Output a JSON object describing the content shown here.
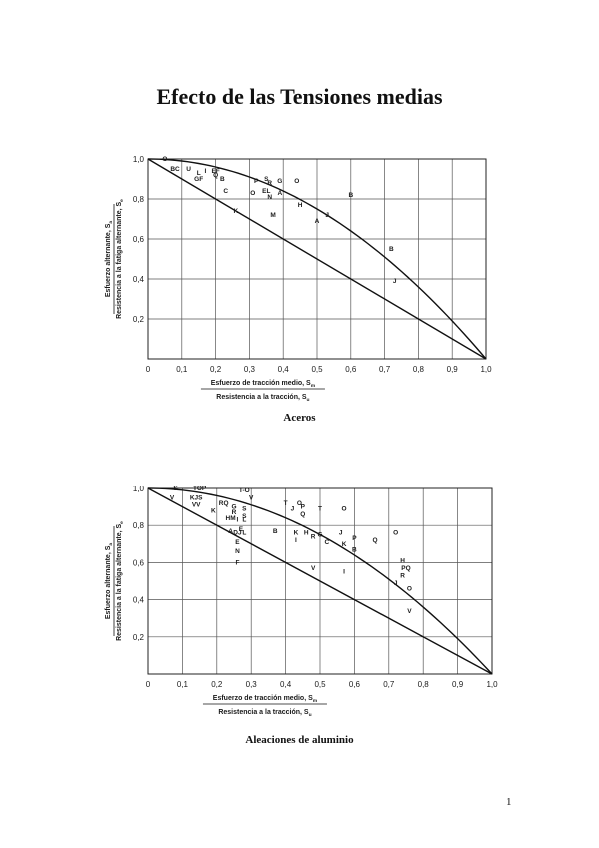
{
  "page": {
    "title": "Efecto de las Tensiones medias",
    "page_number": "1"
  },
  "chart_data": [
    {
      "type": "scatter",
      "title": "Aceros",
      "xlabel_num": "Esfuerzo de tracción medio, S",
      "xlabel_num_sub": "m",
      "xlabel_den": "Resistencia a la tracción, S",
      "xlabel_den_sub": "u",
      "ylabel_num": "Esfuerzo alternante, S",
      "ylabel_num_sub": "a",
      "ylabel_den": "Resistencia a la fatiga alternante, S",
      "ylabel_den_sub": "e",
      "xlim": [
        0,
        1.0
      ],
      "ylim": [
        0,
        1.0
      ],
      "grid": true,
      "x_ticks": [
        "0",
        "0,1",
        "0,2",
        "0,3",
        "0,4",
        "0,5",
        "0,6",
        "0,7",
        "0,8",
        "0,9",
        "1,0"
      ],
      "y_ticks": [
        "0,2",
        "0,4",
        "0,6",
        "0,8",
        "1,0"
      ],
      "curves": [
        {
          "name": "Goodman",
          "kind": "line",
          "points": [
            [
              0,
              1.0
            ],
            [
              1.0,
              0
            ]
          ]
        },
        {
          "name": "Gerber",
          "kind": "parabola",
          "points": [
            [
              0,
              1.0
            ],
            [
              1.0,
              0
            ]
          ]
        }
      ],
      "points": [
        {
          "label": "O",
          "x": 0.05,
          "y": 1.0
        },
        {
          "label": "BC",
          "x": 0.08,
          "y": 0.95
        },
        {
          "label": "U",
          "x": 0.12,
          "y": 0.95
        },
        {
          "label": "I",
          "x": 0.17,
          "y": 0.94
        },
        {
          "label": "EF",
          "x": 0.2,
          "y": 0.94
        },
        {
          "label": "L",
          "x": 0.15,
          "y": 0.93
        },
        {
          "label": "Q",
          "x": 0.2,
          "y": 0.92
        },
        {
          "label": "GF",
          "x": 0.15,
          "y": 0.9
        },
        {
          "label": "B",
          "x": 0.22,
          "y": 0.9
        },
        {
          "label": "C",
          "x": 0.23,
          "y": 0.84
        },
        {
          "label": "P",
          "x": 0.32,
          "y": 0.89
        },
        {
          "label": "S",
          "x": 0.35,
          "y": 0.9
        },
        {
          "label": "R",
          "x": 0.36,
          "y": 0.88
        },
        {
          "label": "G",
          "x": 0.39,
          "y": 0.89
        },
        {
          "label": "O",
          "x": 0.44,
          "y": 0.89
        },
        {
          "label": "O",
          "x": 0.31,
          "y": 0.83
        },
        {
          "label": "EL",
          "x": 0.35,
          "y": 0.84
        },
        {
          "label": "A",
          "x": 0.39,
          "y": 0.83
        },
        {
          "label": "N",
          "x": 0.36,
          "y": 0.81
        },
        {
          "label": "H",
          "x": 0.45,
          "y": 0.77
        },
        {
          "label": "K",
          "x": 0.26,
          "y": 0.74
        },
        {
          "label": "M",
          "x": 0.37,
          "y": 0.72
        },
        {
          "label": "A",
          "x": 0.5,
          "y": 0.69
        },
        {
          "label": "J",
          "x": 0.53,
          "y": 0.72
        },
        {
          "label": "B",
          "x": 0.6,
          "y": 0.82
        },
        {
          "label": "B",
          "x": 0.72,
          "y": 0.55
        },
        {
          "label": "J",
          "x": 0.73,
          "y": 0.39
        }
      ]
    },
    {
      "type": "scatter",
      "title": "Aleaciones de aluminio",
      "xlabel_num": "Esfuerzo de tracción medio, S",
      "xlabel_num_sub": "m",
      "xlabel_den": "Resistencia a la tracción, S",
      "xlabel_den_sub": "u",
      "ylabel_num": "Esfuerzo alternante, S",
      "ylabel_num_sub": "a",
      "ylabel_den": "Resistencia a la fatiga alternante, S",
      "ylabel_den_sub": "e",
      "xlim": [
        0,
        1.0
      ],
      "ylim": [
        0,
        1.0
      ],
      "grid": true,
      "x_ticks": [
        "0",
        "0,1",
        "0,2",
        "0,3",
        "0,4",
        "0,5",
        "0,6",
        "0,7",
        "0,8",
        "0,9",
        "1,0"
      ],
      "y_ticks": [
        "0,2",
        "0,4",
        "0,6",
        "0,8",
        "1,0"
      ],
      "curves": [
        {
          "name": "Goodman",
          "kind": "line",
          "points": [
            [
              0,
              1.0
            ],
            [
              1.0,
              0
            ]
          ]
        },
        {
          "name": "Gerber",
          "kind": "parabola",
          "points": [
            [
              0,
              1.0
            ],
            [
              1.0,
              0
            ]
          ]
        }
      ],
      "points": [
        {
          "label": "S",
          "x": 0.08,
          "y": 1.0
        },
        {
          "label": "TOP",
          "x": 0.15,
          "y": 1.0
        },
        {
          "label": "T-O",
          "x": 0.28,
          "y": 0.99
        },
        {
          "label": "V",
          "x": 0.07,
          "y": 0.95
        },
        {
          "label": "KJS",
          "x": 0.14,
          "y": 0.95
        },
        {
          "label": "V",
          "x": 0.3,
          "y": 0.95
        },
        {
          "label": "VV",
          "x": 0.14,
          "y": 0.91
        },
        {
          "label": "RQ",
          "x": 0.22,
          "y": 0.92
        },
        {
          "label": "G",
          "x": 0.25,
          "y": 0.9
        },
        {
          "label": "S",
          "x": 0.28,
          "y": 0.89
        },
        {
          "label": "T",
          "x": 0.4,
          "y": 0.92
        },
        {
          "label": "O",
          "x": 0.44,
          "y": 0.92
        },
        {
          "label": "J",
          "x": 0.42,
          "y": 0.89
        },
        {
          "label": "P",
          "x": 0.45,
          "y": 0.9
        },
        {
          "label": "T",
          "x": 0.5,
          "y": 0.89
        },
        {
          "label": "O",
          "x": 0.57,
          "y": 0.89
        },
        {
          "label": "Q",
          "x": 0.45,
          "y": 0.86
        },
        {
          "label": "K",
          "x": 0.19,
          "y": 0.88
        },
        {
          "label": "R",
          "x": 0.25,
          "y": 0.87
        },
        {
          "label": "S",
          "x": 0.28,
          "y": 0.85
        },
        {
          "label": "HM",
          "x": 0.24,
          "y": 0.84
        },
        {
          "label": "L",
          "x": 0.28,
          "y": 0.83
        },
        {
          "label": "I",
          "x": 0.26,
          "y": 0.83
        },
        {
          "label": "A",
          "x": 0.24,
          "y": 0.77
        },
        {
          "label": "DJ",
          "x": 0.26,
          "y": 0.76
        },
        {
          "label": "L",
          "x": 0.28,
          "y": 0.76
        },
        {
          "label": "E",
          "x": 0.27,
          "y": 0.78
        },
        {
          "label": "B",
          "x": 0.37,
          "y": 0.77
        },
        {
          "label": "K",
          "x": 0.43,
          "y": 0.76
        },
        {
          "label": "H",
          "x": 0.46,
          "y": 0.76
        },
        {
          "label": "R",
          "x": 0.48,
          "y": 0.74
        },
        {
          "label": "G",
          "x": 0.5,
          "y": 0.75
        },
        {
          "label": "J",
          "x": 0.56,
          "y": 0.76
        },
        {
          "label": "I",
          "x": 0.43,
          "y": 0.72
        },
        {
          "label": "C",
          "x": 0.52,
          "y": 0.71
        },
        {
          "label": "P",
          "x": 0.6,
          "y": 0.73
        },
        {
          "label": "K",
          "x": 0.57,
          "y": 0.7
        },
        {
          "label": "Q",
          "x": 0.66,
          "y": 0.72
        },
        {
          "label": "O",
          "x": 0.72,
          "y": 0.76
        },
        {
          "label": "E",
          "x": 0.26,
          "y": 0.71
        },
        {
          "label": "N",
          "x": 0.26,
          "y": 0.66
        },
        {
          "label": "F",
          "x": 0.26,
          "y": 0.6
        },
        {
          "label": "B",
          "x": 0.6,
          "y": 0.67
        },
        {
          "label": "V",
          "x": 0.48,
          "y": 0.57
        },
        {
          "label": "I",
          "x": 0.57,
          "y": 0.55
        },
        {
          "label": "H",
          "x": 0.74,
          "y": 0.61
        },
        {
          "label": "PQ",
          "x": 0.75,
          "y": 0.57
        },
        {
          "label": "R",
          "x": 0.74,
          "y": 0.53
        },
        {
          "label": "J",
          "x": 0.72,
          "y": 0.49
        },
        {
          "label": "O",
          "x": 0.76,
          "y": 0.46
        },
        {
          "label": "V",
          "x": 0.76,
          "y": 0.34
        }
      ]
    }
  ]
}
